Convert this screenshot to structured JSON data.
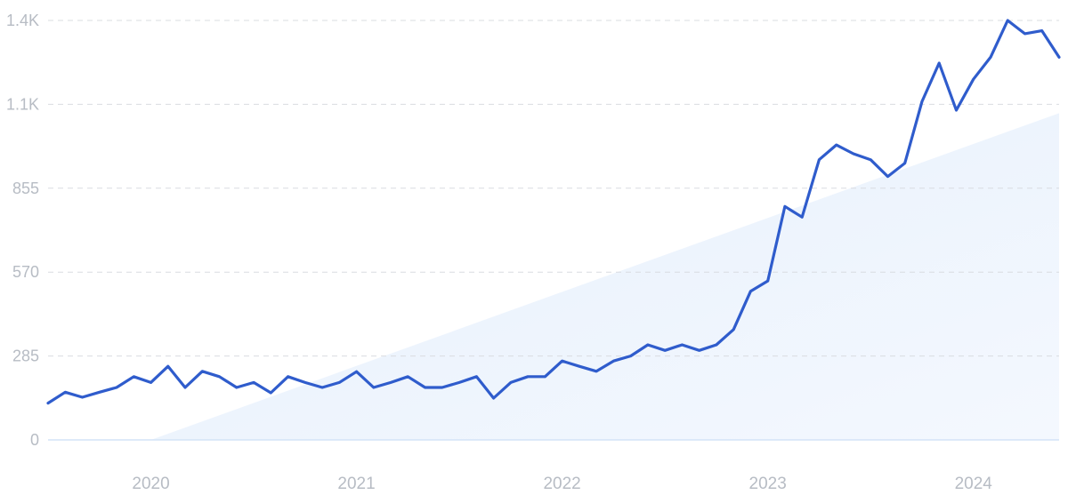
{
  "chart_data": {
    "type": "line",
    "title": "",
    "xlabel": "",
    "ylabel": "",
    "y_ticks": [
      "0",
      "285",
      "570",
      "855",
      "1.1K",
      "1.4K"
    ],
    "y_tick_values": [
      0,
      285,
      570,
      855,
      1140,
      1425
    ],
    "ylim": [
      0,
      1425
    ],
    "x_ticks": [
      "2020",
      "2021",
      "2022",
      "2023",
      "2024"
    ],
    "xlim": [
      "2019-07",
      "2024-06"
    ],
    "grid": true,
    "line_color": "#2f5ccc",
    "trend_color": "#e6f0fc",
    "series": [
      {
        "name": "",
        "x": [
          "2019-07",
          "2019-08",
          "2019-09",
          "2019-10",
          "2019-11",
          "2019-12",
          "2020-01",
          "2020-02",
          "2020-03",
          "2020-04",
          "2020-05",
          "2020-06",
          "2020-07",
          "2020-08",
          "2020-09",
          "2020-10",
          "2020-11",
          "2020-12",
          "2021-01",
          "2021-02",
          "2021-03",
          "2021-04",
          "2021-05",
          "2021-06",
          "2021-07",
          "2021-08",
          "2021-09",
          "2021-10",
          "2021-11",
          "2021-12",
          "2022-01",
          "2022-02",
          "2022-03",
          "2022-04",
          "2022-05",
          "2022-06",
          "2022-07",
          "2022-08",
          "2022-09",
          "2022-10",
          "2022-11",
          "2022-12",
          "2023-01",
          "2023-02",
          "2023-03",
          "2023-04",
          "2023-05",
          "2023-06",
          "2023-07",
          "2023-08",
          "2023-09",
          "2023-10",
          "2023-11",
          "2023-12",
          "2024-01",
          "2024-02",
          "2024-03",
          "2024-04",
          "2024-05",
          "2024-06"
        ],
        "values": [
          125,
          162,
          145,
          162,
          178,
          215,
          195,
          250,
          178,
          233,
          215,
          178,
          195,
          160,
          215,
          195,
          178,
          195,
          232,
          178,
          195,
          215,
          178,
          178,
          195,
          215,
          142,
          195,
          215,
          215,
          268,
          250,
          233,
          268,
          285,
          323,
          304,
          323,
          304,
          323,
          375,
          505,
          540,
          793,
          757,
          952,
          1002,
          972,
          952,
          895,
          940,
          1150,
          1280,
          1120,
          1225,
          1300,
          1425,
          1380,
          1390,
          1300
        ]
      }
    ],
    "trend": {
      "x_start": "2020-01",
      "y_start": 0,
      "x_end": "2024-06",
      "y_end": 1110
    }
  }
}
